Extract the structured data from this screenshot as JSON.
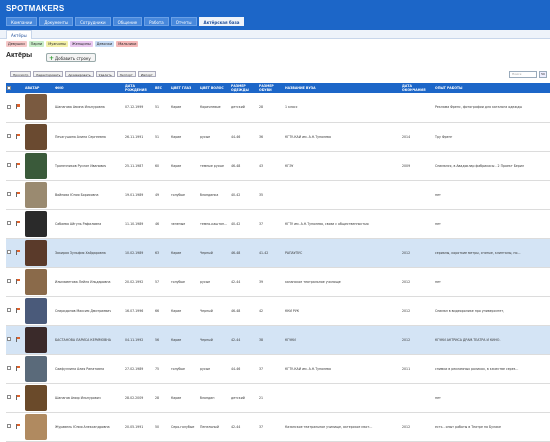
{
  "app": {
    "logo": "SPOTMAKERS"
  },
  "nav": [
    "Компании",
    "Документы",
    "Сотрудники",
    "Общение",
    "Работа",
    "Отчеты",
    "Актёрская база"
  ],
  "subtab": "Актёры",
  "tags": [
    {
      "label": "Девушки",
      "bg": "#f6c8c8"
    },
    {
      "label": "Парни",
      "bg": "#c8ecc8"
    },
    {
      "label": "Мужчины",
      "bg": "#f3f0a8"
    },
    {
      "label": "Женщины",
      "bg": "#e9c8f0"
    },
    {
      "label": "Девочки",
      "bg": "#c8dcf5"
    },
    {
      "label": "Мальчики",
      "bg": "#f5b8b8"
    }
  ],
  "page": {
    "title": "Актёры",
    "add_button": "Добавить строку"
  },
  "toolbar": [
    "Просмотр",
    "Редактировать",
    "Архивировать",
    "Удалить",
    "Экспорт",
    "Импорт"
  ],
  "search_placeholder": "Поиск",
  "pager": "50",
  "columns": [
    "",
    "",
    "АВАТАР",
    "ФИО",
    "ДАТА РОЖДЕНИЯ",
    "ВЕС",
    "ЦВЕТ ГЛАЗ",
    "ЦВЕТ ВОЛОС",
    "РАЗМЕР ОДЕЖДЫ",
    "РАЗМЕР ОБУВИ",
    "НАЗВАНИЕ ВУЗА",
    "ДАТА ОКОНЧАНИЯ",
    "ОПЫТ РАБОТЫ"
  ],
  "rows": [
    {
      "avatar": "#7a5a40",
      "name": "Шапагова Амина Ильнуровна",
      "dob": "07.12.1999",
      "weight": "51",
      "eyes": "Карие",
      "hair": "Коричневые",
      "clothes": "детский",
      "shoes": "28",
      "uni": "1 класс",
      "grad": "",
      "exp": "Реклама Френс, фотографии для каталога одежды",
      "hl": false
    },
    {
      "avatar": "#6a4a30",
      "name": "Печагушина Алина Сергеевна",
      "dob": "26.11.1991",
      "weight": "51",
      "eyes": "Карие",
      "hair": "русые",
      "clothes": "44-46",
      "shoes": "36",
      "uni": "КГТУ-КАИ им. А.Н.Туполева",
      "grad": "2014",
      "exp": "Тру Френг",
      "hl": false
    },
    {
      "avatar": "#3a5a3a",
      "name": "Трапезников Руслан Иванович",
      "dob": "25.11.1987",
      "weight": "60",
      "eyes": "Карие",
      "hair": "темные русые",
      "clothes": "46-48",
      "shoes": "43",
      "uni": "КГЭУ",
      "grad": "2009",
      "exp": "Снимался, в Авадоклар фабрикасы - 2 Проект Берил",
      "hl": false
    },
    {
      "avatar": "#9a8a70",
      "name": "Вайнова Юлия Борисовна",
      "dob": "19.01.1989",
      "weight": "49",
      "eyes": "голубые",
      "hair": "блондинка",
      "clothes": "40-42",
      "shoes": "35",
      "uni": "",
      "grad": "",
      "exp": "нет",
      "hl": false
    },
    {
      "avatar": "#2a2a2a",
      "name": "Сабаева Айгуль Рафиловна",
      "dob": "11.10.1989",
      "weight": "46",
      "eyes": "зеленые",
      "hair": "темно-каштановые",
      "clothes": "40-42",
      "shoes": "37",
      "uni": "КГТУ им. А.Н.Туполева, связи с общественностью",
      "grad": "",
      "exp": "нет",
      "hl": false
    },
    {
      "avatar": "#5a3a2a",
      "name": "Закирая Зульфия Хайдаровна",
      "dob": "10.02.1989",
      "weight": "63",
      "eyes": "Карие",
      "hair": "Черный",
      "clothes": "46-48",
      "shoes": "41-42",
      "uni": "РАПАУПУС",
      "grad": "2012",
      "exp": "сериалы, короткие метры, снятые, клипталы, по...",
      "hl": true
    },
    {
      "avatar": "#8a6a4a",
      "name": "Ильмаметова Лейля Ильдаровна",
      "dob": "20.02.1992",
      "weight": "57",
      "eyes": "голубые",
      "hair": "русые",
      "clothes": "42-44",
      "shoes": "39",
      "uni": "казанское театральное училище",
      "grad": "2012",
      "exp": "нет",
      "hl": false
    },
    {
      "avatar": "#4a5a7a",
      "name": "Спиридонов Максим Дмитриевич",
      "dob": "16.07.1996",
      "weight": "66",
      "eyes": "Карие",
      "hair": "Черный",
      "clothes": "46-48",
      "shoes": "42",
      "uni": "ККИ РУК",
      "grad": "2012",
      "exp": "Снимал в видеоролике про университет,",
      "hl": false
    },
    {
      "avatar": "#3a2a2a",
      "name": "БАСТАНОВА ЛАРИСА КЕРИМОВНА",
      "dob": "04.11.1992",
      "weight": "56",
      "eyes": "Карие",
      "hair": "Черный",
      "clothes": "42-44",
      "shoes": "38",
      "uni": "КГУКИ",
      "grad": "2012",
      "exp": "КГУКИ АКТРИСА ДРАМ.ТЕАТРА И КИНО.",
      "hl": true
    },
    {
      "avatar": "#5a6a7a",
      "name": "Саифуллина Алия Ринатовна",
      "dob": "27.02.1989",
      "weight": "75",
      "eyes": "голубые",
      "hair": "русые",
      "clothes": "44-46",
      "shoes": "37",
      "uni": "КГТУ-КАИ им. А.Н.Туполева",
      "grad": "2011",
      "exp": "снимки в рекламных роликах, в качестве серез...",
      "hl": false
    },
    {
      "avatar": "#6a4a2a",
      "name": "Шапагов Амир Ильнурович",
      "dob": "28.02.2009",
      "weight": "28",
      "eyes": "Карие",
      "hair": "блондин",
      "clothes": "детский",
      "shoes": "21",
      "uni": "",
      "grad": "",
      "exp": "нет",
      "hl": false
    },
    {
      "avatar": "#b08a60",
      "name": "Журавель Юлия Александровна",
      "dob": "20.05.1991",
      "weight": "50",
      "eyes": "Серо-голубые",
      "hair": "Пепельный",
      "clothes": "42-44",
      "shoes": "37",
      "uni": "Казанское театральное училище, актерское маст...",
      "grad": "2012",
      "exp": "есть - опыт работы в Театре на Булаке",
      "hl": false
    }
  ]
}
